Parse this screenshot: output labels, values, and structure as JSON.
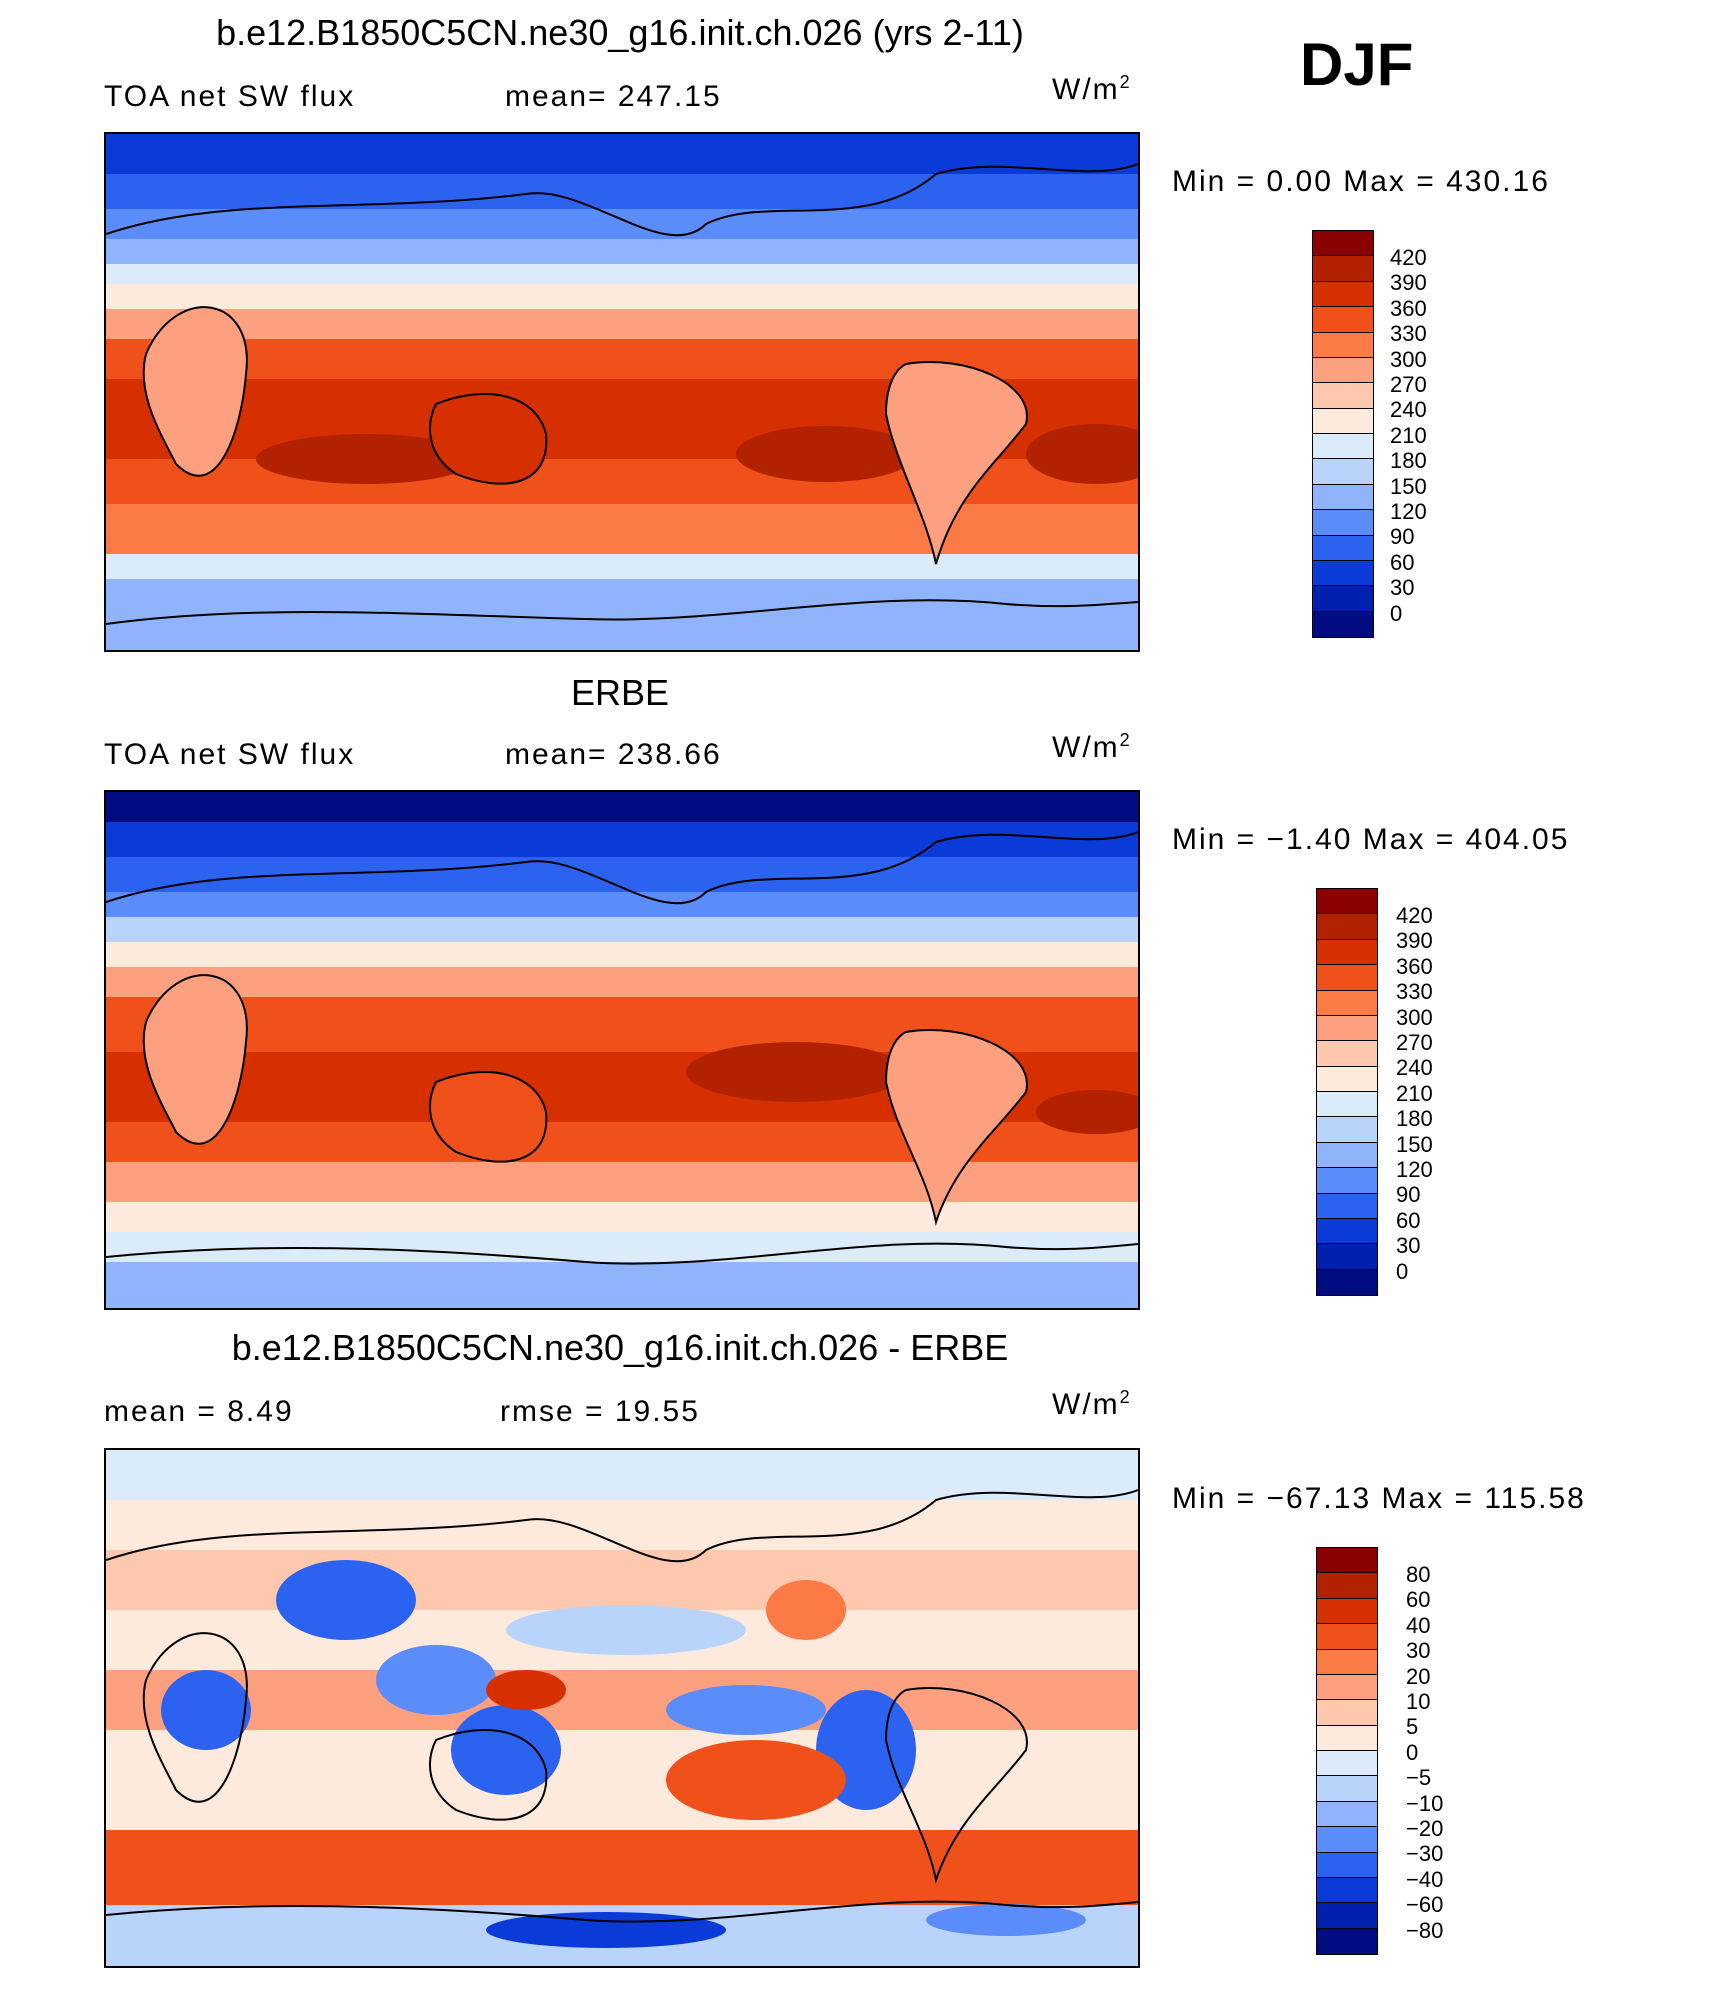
{
  "season": "DJF",
  "units_base": "W/m",
  "units_sup": "2",
  "panels": [
    {
      "title": "b.e12.B1850C5CN.ne30_g16.init.ch.026 (yrs 2-11)",
      "left_label": "TOA net SW flux",
      "center_label": "mean= 247.15",
      "minmax": "Min =    0.00 Max = 430.16",
      "levels": [
        "420",
        "390",
        "360",
        "330",
        "300",
        "270",
        "240",
        "210",
        "180",
        "150",
        "120",
        "90",
        "60",
        "30",
        "0"
      ]
    },
    {
      "title": "ERBE",
      "left_label": "TOA net SW flux",
      "center_label": "mean= 238.66",
      "minmax": "Min =  −1.40 Max = 404.05",
      "levels": [
        "420",
        "390",
        "360",
        "330",
        "300",
        "270",
        "240",
        "210",
        "180",
        "150",
        "120",
        "90",
        "60",
        "30",
        "0"
      ]
    },
    {
      "title": "b.e12.B1850C5CN.ne30_g16.init.ch.026 - ERBE",
      "left_label": "mean =    8.49",
      "center_label": "rmse =   19.55",
      "minmax": "Min = −67.13 Max = 115.58",
      "levels": [
        "80",
        "60",
        "40",
        "30",
        "20",
        "10",
        "5",
        "0",
        "−5",
        "−10",
        "−20",
        "−30",
        "−40",
        "−60",
        "−80"
      ]
    }
  ],
  "palette": [
    "#8b0000",
    "#b22200",
    "#d63000",
    "#f0501a",
    "#fb7a45",
    "#fca080",
    "#fdc8ae",
    "#feeadc",
    "#dcebfa",
    "#b8d4fa",
    "#8fb4fb",
    "#5a8cfa",
    "#2c62f0",
    "#0a3ad8",
    "#0020b0",
    "#000c80"
  ]
}
